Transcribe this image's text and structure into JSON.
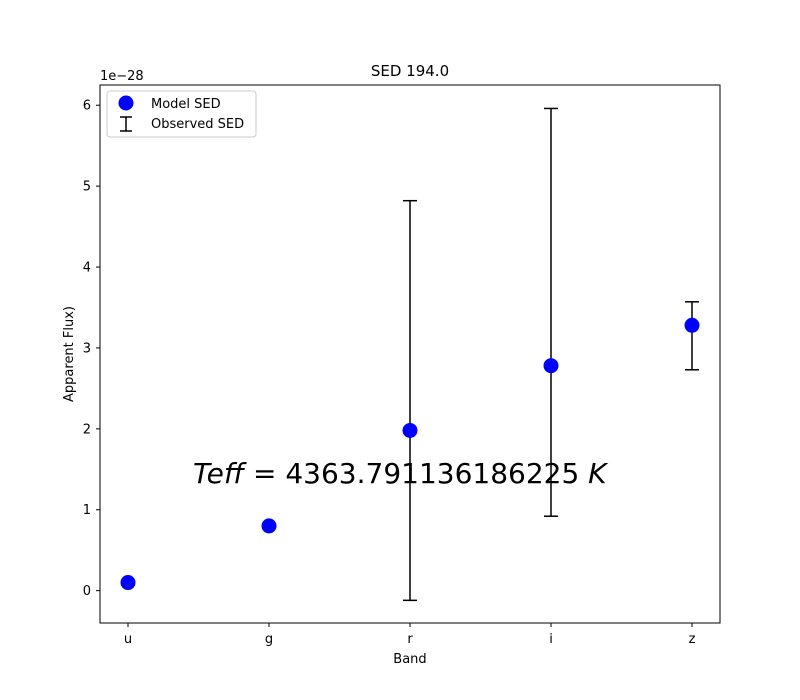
{
  "chart_data": {
    "type": "scatter",
    "title": "SED 194.0",
    "xlabel": "Band",
    "ylabel": "Apparent Flux)",
    "y_scale_label": "1e−28",
    "categories": [
      "u",
      "g",
      "r",
      "i",
      "z"
    ],
    "ylim": [
      -0.4,
      6.25
    ],
    "yticks": [
      0,
      1,
      2,
      3,
      4,
      5,
      6
    ],
    "ytick_labels": [
      "0",
      "1",
      "2",
      "3",
      "4",
      "5",
      "6"
    ],
    "grid": false,
    "legend_position": "top-left",
    "legend": [
      {
        "label": "Model SED",
        "marker": "circle",
        "color": "#0000ff"
      },
      {
        "label": "Observed SED",
        "marker": "errorbar",
        "color": "#000000"
      }
    ],
    "series": [
      {
        "name": "Model SED",
        "marker": "circle",
        "color": "#0000ff",
        "values": [
          0.1,
          0.8,
          1.98,
          2.78,
          3.28
        ]
      },
      {
        "name": "Observed SED",
        "marker": "errorbar",
        "color": "#000000",
        "center": [
          0.1,
          0.8,
          2.35,
          3.45,
          3.15
        ],
        "lower": [
          0.07,
          0.77,
          -0.12,
          0.92,
          2.73
        ],
        "upper": [
          0.13,
          0.83,
          4.82,
          5.96,
          3.57
        ]
      }
    ],
    "annotation": {
      "prefix": "Teff",
      "text": " = 4363.791136186225 ",
      "unit": "K"
    }
  }
}
